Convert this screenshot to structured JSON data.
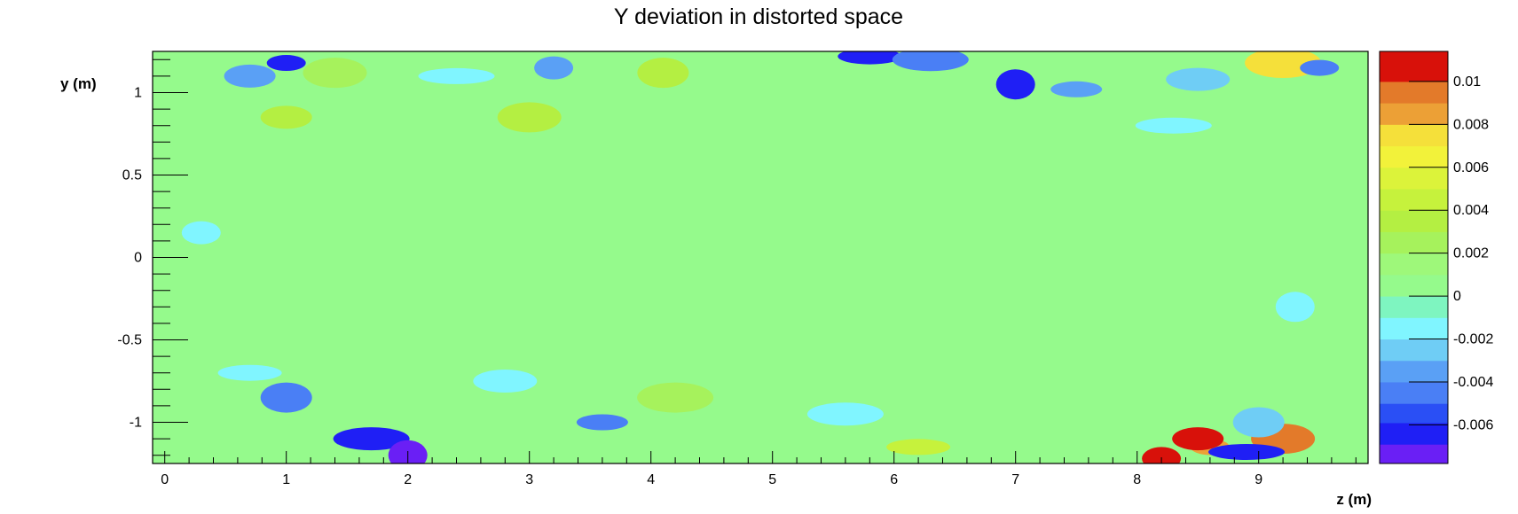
{
  "chart_data": {
    "type": "heatmap",
    "title": "Y deviation in distorted space",
    "xlabel": "z (m)",
    "ylabel": "y (m)",
    "xlim": [
      -0.1,
      9.9
    ],
    "ylim": [
      -1.25,
      1.25
    ],
    "x_ticks": [
      0,
      1,
      2,
      3,
      4,
      5,
      6,
      7,
      8,
      9
    ],
    "y_ticks": [
      -1,
      -0.5,
      0,
      0.5,
      1
    ],
    "y_tick_labels": [
      "-1",
      "-0.5",
      "0",
      "0.5",
      "1"
    ],
    "colorbar": {
      "range": [
        -0.0078,
        0.0114
      ],
      "ticks": [
        -0.006,
        -0.004,
        -0.002,
        0,
        0.002,
        0.004,
        0.006,
        0.008,
        0.01
      ],
      "tick_labels": [
        "-0.006",
        "-0.004",
        "-0.002",
        "0",
        "0.002",
        "0.004",
        "0.006",
        "0.008",
        "0.01"
      ],
      "levels": [
        {
          "from": -0.0078,
          "to": -0.0069,
          "color": "#6a1ff5"
        },
        {
          "from": -0.0069,
          "to": -0.0059,
          "color": "#1f1ff5"
        },
        {
          "from": -0.0059,
          "to": -0.005,
          "color": "#2a4ff5"
        },
        {
          "from": -0.005,
          "to": -0.004,
          "color": "#4a7ff5"
        },
        {
          "from": -0.004,
          "to": -0.003,
          "color": "#5aa0f5"
        },
        {
          "from": -0.003,
          "to": -0.002,
          "color": "#6fcdf5"
        },
        {
          "from": -0.002,
          "to": -0.001,
          "color": "#80f5ff"
        },
        {
          "from": -0.001,
          "to": 0.0,
          "color": "#7ef5c0"
        },
        {
          "from": 0.0,
          "to": 0.001,
          "color": "#95fa8c"
        },
        {
          "from": 0.001,
          "to": 0.002,
          "color": "#9ef87a"
        },
        {
          "from": 0.002,
          "to": 0.003,
          "color": "#a6f25c"
        },
        {
          "from": 0.003,
          "to": 0.004,
          "color": "#b4ef42"
        },
        {
          "from": 0.004,
          "to": 0.005,
          "color": "#c6f23c"
        },
        {
          "from": 0.005,
          "to": 0.006,
          "color": "#dcf33a"
        },
        {
          "from": 0.006,
          "to": 0.007,
          "color": "#f2f23a"
        },
        {
          "from": 0.007,
          "to": 0.008,
          "color": "#f5e03a"
        },
        {
          "from": 0.008,
          "to": 0.009,
          "color": "#eca036"
        },
        {
          "from": 0.009,
          "to": 0.01,
          "color": "#e37a2a"
        },
        {
          "from": 0.01,
          "to": 0.0114,
          "color": "#d8110a"
        }
      ]
    },
    "background_value": 0.0005,
    "features": [
      {
        "z": 1.0,
        "y": 1.18,
        "value": -0.006
      },
      {
        "z": 0.7,
        "y": 1.1,
        "value": -0.004
      },
      {
        "z": 1.4,
        "y": 1.12,
        "value": 0.0025
      },
      {
        "z": 2.4,
        "y": 1.1,
        "value": -0.002
      },
      {
        "z": 3.2,
        "y": 1.15,
        "value": -0.004
      },
      {
        "z": 4.1,
        "y": 1.12,
        "value": 0.0035
      },
      {
        "z": 5.8,
        "y": 1.22,
        "value": -0.006
      },
      {
        "z": 6.3,
        "y": 1.2,
        "value": -0.005
      },
      {
        "z": 7.0,
        "y": 1.05,
        "value": -0.006
      },
      {
        "z": 7.5,
        "y": 1.02,
        "value": -0.004
      },
      {
        "z": 8.5,
        "y": 1.08,
        "value": -0.003
      },
      {
        "z": 9.2,
        "y": 1.18,
        "value": 0.0075
      },
      {
        "z": 9.5,
        "y": 1.15,
        "value": -0.005
      },
      {
        "z": 1.0,
        "y": 0.85,
        "value": 0.003
      },
      {
        "z": 3.0,
        "y": 0.85,
        "value": 0.003
      },
      {
        "z": 8.3,
        "y": 0.8,
        "value": -0.002
      },
      {
        "z": 0.3,
        "y": 0.15,
        "value": -0.0012
      },
      {
        "z": 1.0,
        "y": -0.85,
        "value": -0.005
      },
      {
        "z": 0.7,
        "y": -0.7,
        "value": -0.002
      },
      {
        "z": 1.7,
        "y": -1.1,
        "value": -0.0065
      },
      {
        "z": 2.0,
        "y": -1.2,
        "value": -0.007
      },
      {
        "z": 3.6,
        "y": -1.0,
        "value": -0.005
      },
      {
        "z": 2.8,
        "y": -0.75,
        "value": -0.002
      },
      {
        "z": 4.2,
        "y": -0.85,
        "value": 0.0025
      },
      {
        "z": 8.6,
        "y": -1.15,
        "value": 0.008
      },
      {
        "z": 8.5,
        "y": -1.1,
        "value": 0.01
      },
      {
        "z": 9.2,
        "y": -1.1,
        "value": 0.0095
      },
      {
        "z": 8.9,
        "y": -1.18,
        "value": -0.006
      },
      {
        "z": 8.2,
        "y": -1.22,
        "value": 0.011
      },
      {
        "z": 9.0,
        "y": -1.0,
        "value": -0.003
      },
      {
        "z": 6.2,
        "y": -1.15,
        "value": 0.004
      },
      {
        "z": 5.6,
        "y": -0.95,
        "value": -0.002
      },
      {
        "z": 9.3,
        "y": -0.3,
        "value": -0.0012
      }
    ]
  }
}
